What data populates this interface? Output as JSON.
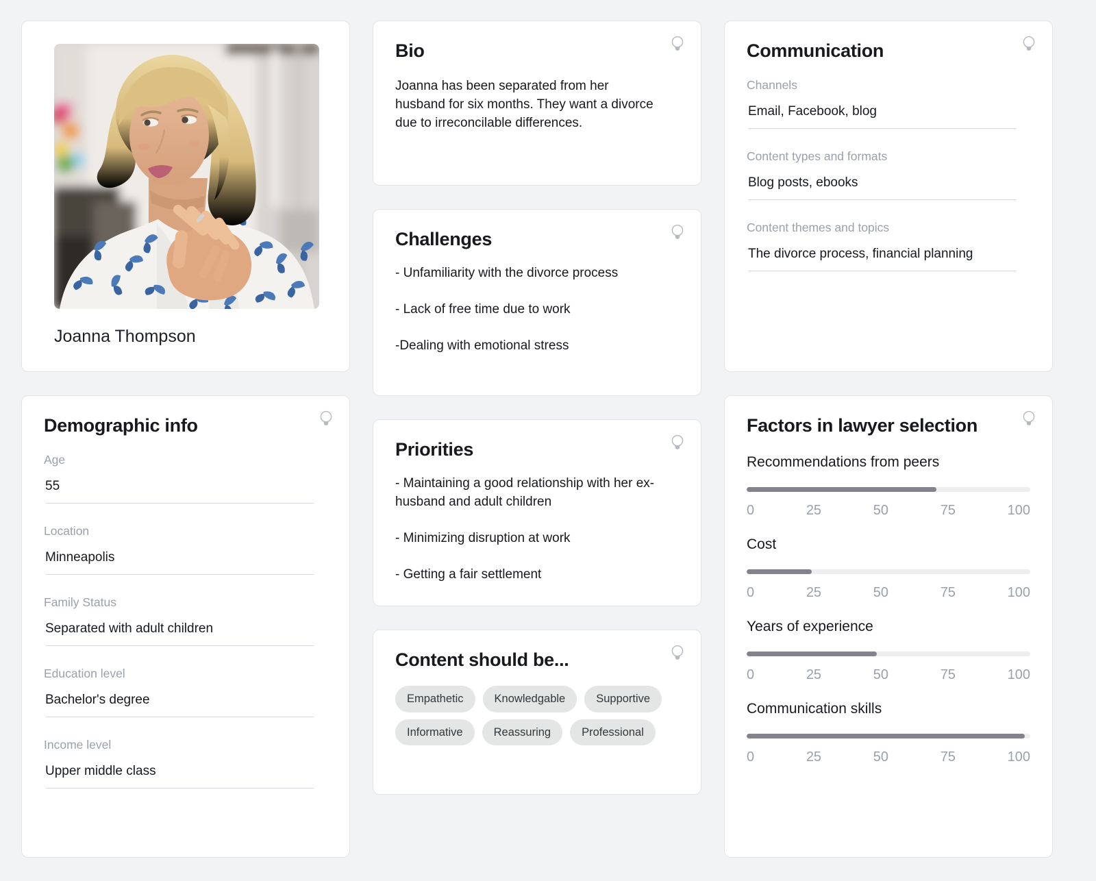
{
  "theme": {
    "page_bg": "#F2F3F5",
    "card_bg": "#FFFFFF",
    "card_border": "#E2E4E8",
    "label_color": "#9AA1A9",
    "text_color": "#16191D",
    "underline_color": "#D8DBDF",
    "slider_fill": "#82838C",
    "slider_track": "#EDEDEF",
    "tag_bg": "#E3E6E4",
    "bulb_icon_color": "#B7BCC2"
  },
  "profile": {
    "name": "Joanna Thompson"
  },
  "bio": {
    "title": "Bio",
    "text": "Joanna has been separated from her husband for six months. They want a divorce due to irreconcilable differences."
  },
  "challenges": {
    "title": "Challenges",
    "items": [
      "- Unfamiliarity with the divorce process",
      "- Lack of free time due to work",
      "-Dealing with emotional stress"
    ]
  },
  "priorities": {
    "title": "Priorities",
    "items": [
      "- Maintaining a good relationship with her ex-husband and adult children",
      "- Minimizing disruption at work",
      "- Getting a fair settlement"
    ]
  },
  "content_should_be": {
    "title": "Content should be...",
    "tags": [
      "Empathetic",
      "Knowledgable",
      "Supportive",
      "Informative",
      "Reassuring",
      "Professional"
    ]
  },
  "demographic": {
    "title": "Demographic info",
    "fields": [
      {
        "label": "Age",
        "value": "55"
      },
      {
        "label": "Location",
        "value": "Minneapolis"
      },
      {
        "label": "Family Status",
        "value": "Separated with adult children"
      },
      {
        "label": "Education level",
        "value": "Bachelor's degree"
      },
      {
        "label": "Income level",
        "value": "Upper middle class"
      }
    ]
  },
  "communication": {
    "title": "Communication",
    "fields": [
      {
        "label": "Channels",
        "value": "Email, Facebook, blog"
      },
      {
        "label": "Content types and formats",
        "value": "Blog posts, ebooks"
      },
      {
        "label": "Content themes and topics",
        "value": "The divorce process, financial planning"
      }
    ]
  },
  "factors": {
    "title": "Factors in lawyer selection",
    "scale_ticks": [
      "0",
      "25",
      "50",
      "75",
      "100"
    ],
    "chart_data": {
      "type": "bar",
      "categories": [
        "Recommendations from peers",
        "Cost",
        "Years of experience",
        "Communication skills"
      ],
      "values": [
        67,
        23,
        46,
        98
      ],
      "xlim": [
        0,
        100
      ]
    },
    "sliders": [
      {
        "label": "Recommendations from peers",
        "value": 67
      },
      {
        "label": "Cost",
        "value": 23
      },
      {
        "label": "Years of experience",
        "value": 46
      },
      {
        "label": "Communication skills",
        "value": 98
      }
    ]
  }
}
